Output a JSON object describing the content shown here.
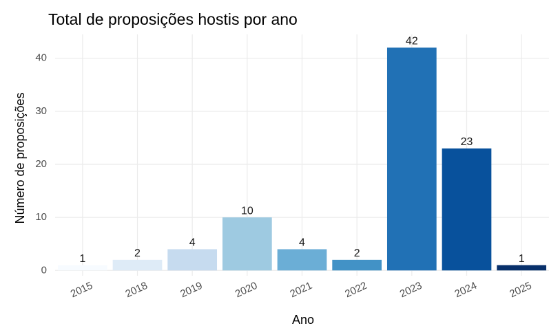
{
  "chart_data": {
    "type": "bar",
    "title": "Total de proposições hostis por ano",
    "x_label": "Ano",
    "y_label": "Número de proposições",
    "categories": [
      "2015",
      "2018",
      "2019",
      "2020",
      "2021",
      "2022",
      "2023",
      "2024",
      "2025"
    ],
    "values": [
      1,
      2,
      4,
      10,
      4,
      2,
      42,
      23,
      1
    ],
    "colors": [
      "#f7fbff",
      "#deebf7",
      "#c6dbef",
      "#9ecae1",
      "#6baed6",
      "#4292c6",
      "#2171b5",
      "#08519c",
      "#08306b"
    ],
    "ylim": [
      -1,
      44.5
    ],
    "yticks": [
      0,
      10,
      20,
      30,
      40
    ],
    "grid": true
  }
}
